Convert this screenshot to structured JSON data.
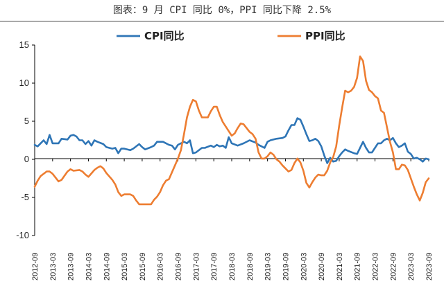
{
  "figure_title": "图表：9 月 CPI 同比 0%，PPI 同比下降 2.5%",
  "chart_data": {
    "type": "line",
    "title": "图表：9 月 CPI 同比 0%，PPI 同比下降 2.5%",
    "xlabel": "",
    "ylabel": "",
    "ylim": [
      -10,
      15
    ],
    "yticks": [
      -10,
      -5,
      0,
      5,
      10,
      15
    ],
    "x_start": "2012-09",
    "x_end": "2023-09",
    "xtick_labels": [
      "2012-09",
      "2013-03",
      "2013-09",
      "2014-03",
      "2014-09",
      "2015-03",
      "2015-09",
      "2016-03",
      "2016-09",
      "2017-03",
      "2017-09",
      "2018-03",
      "2018-09",
      "2019-03",
      "2019-09",
      "2020-03",
      "2020-09",
      "2021-03",
      "2021-09",
      "2022-03",
      "2022-09",
      "2023-03",
      "2023-09"
    ],
    "grid": false,
    "legend_position": "top",
    "series": [
      {
        "name": "CPI同比",
        "color": "#2E75B6",
        "points": [
          [
            "2012-09",
            1.9
          ],
          [
            "2012-10",
            1.7
          ],
          [
            "2012-12",
            2.5
          ],
          [
            "2013-01",
            2.0
          ],
          [
            "2013-02",
            3.2
          ],
          [
            "2013-03",
            2.1
          ],
          [
            "2013-05",
            2.1
          ],
          [
            "2013-06",
            2.7
          ],
          [
            "2013-08",
            2.6
          ],
          [
            "2013-09",
            3.1
          ],
          [
            "2013-10",
            3.2
          ],
          [
            "2013-11",
            3.0
          ],
          [
            "2013-12",
            2.5
          ],
          [
            "2014-01",
            2.5
          ],
          [
            "2014-02",
            2.0
          ],
          [
            "2014-03",
            2.4
          ],
          [
            "2014-04",
            1.8
          ],
          [
            "2014-05",
            2.5
          ],
          [
            "2014-06",
            2.3
          ],
          [
            "2014-08",
            2.0
          ],
          [
            "2014-09",
            1.6
          ],
          [
            "2014-11",
            1.4
          ],
          [
            "2014-12",
            1.5
          ],
          [
            "2015-01",
            0.8
          ],
          [
            "2015-02",
            1.4
          ],
          [
            "2015-03",
            1.4
          ],
          [
            "2015-05",
            1.2
          ],
          [
            "2015-06",
            1.4
          ],
          [
            "2015-08",
            2.0
          ],
          [
            "2015-09",
            1.6
          ],
          [
            "2015-10",
            1.3
          ],
          [
            "2015-12",
            1.6
          ],
          [
            "2016-01",
            1.8
          ],
          [
            "2016-02",
            2.3
          ],
          [
            "2016-04",
            2.3
          ],
          [
            "2016-06",
            1.9
          ],
          [
            "2016-07",
            1.8
          ],
          [
            "2016-08",
            1.3
          ],
          [
            "2016-09",
            1.9
          ],
          [
            "2016-11",
            2.3
          ],
          [
            "2016-12",
            2.1
          ],
          [
            "2017-01",
            2.5
          ],
          [
            "2017-02",
            0.8
          ],
          [
            "2017-03",
            0.9
          ],
          [
            "2017-05",
            1.5
          ],
          [
            "2017-06",
            1.5
          ],
          [
            "2017-08",
            1.8
          ],
          [
            "2017-09",
            1.6
          ],
          [
            "2017-10",
            1.9
          ],
          [
            "2017-11",
            1.7
          ],
          [
            "2017-12",
            1.8
          ],
          [
            "2018-01",
            1.5
          ],
          [
            "2018-02",
            2.9
          ],
          [
            "2018-03",
            2.1
          ],
          [
            "2018-05",
            1.8
          ],
          [
            "2018-07",
            2.1
          ],
          [
            "2018-09",
            2.5
          ],
          [
            "2018-11",
            2.2
          ],
          [
            "2018-12",
            1.9
          ],
          [
            "2019-01",
            1.7
          ],
          [
            "2019-02",
            1.5
          ],
          [
            "2019-03",
            2.3
          ],
          [
            "2019-04",
            2.5
          ],
          [
            "2019-06",
            2.7
          ],
          [
            "2019-08",
            2.8
          ],
          [
            "2019-09",
            3.0
          ],
          [
            "2019-10",
            3.8
          ],
          [
            "2019-11",
            4.5
          ],
          [
            "2019-12",
            4.5
          ],
          [
            "2020-01",
            5.4
          ],
          [
            "2020-02",
            5.2
          ],
          [
            "2020-03",
            4.3
          ],
          [
            "2020-04",
            3.3
          ],
          [
            "2020-05",
            2.4
          ],
          [
            "2020-06",
            2.5
          ],
          [
            "2020-07",
            2.7
          ],
          [
            "2020-08",
            2.4
          ],
          [
            "2020-09",
            1.7
          ],
          [
            "2020-10",
            0.5
          ],
          [
            "2020-11",
            -0.5
          ],
          [
            "2020-12",
            0.2
          ],
          [
            "2021-01",
            -0.3
          ],
          [
            "2021-02",
            -0.2
          ],
          [
            "2021-03",
            0.4
          ],
          [
            "2021-04",
            0.9
          ],
          [
            "2021-05",
            1.3
          ],
          [
            "2021-06",
            1.1
          ],
          [
            "2021-08",
            0.8
          ],
          [
            "2021-09",
            0.7
          ],
          [
            "2021-10",
            1.5
          ],
          [
            "2021-11",
            2.3
          ],
          [
            "2021-12",
            1.5
          ],
          [
            "2022-01",
            0.9
          ],
          [
            "2022-02",
            0.9
          ],
          [
            "2022-03",
            1.5
          ],
          [
            "2022-04",
            2.1
          ],
          [
            "2022-05",
            2.1
          ],
          [
            "2022-06",
            2.5
          ],
          [
            "2022-07",
            2.7
          ],
          [
            "2022-08",
            2.5
          ],
          [
            "2022-09",
            2.8
          ],
          [
            "2022-10",
            2.1
          ],
          [
            "2022-11",
            1.6
          ],
          [
            "2022-12",
            1.8
          ],
          [
            "2023-01",
            2.1
          ],
          [
            "2023-02",
            1.0
          ],
          [
            "2023-03",
            0.7
          ],
          [
            "2023-04",
            0.1
          ],
          [
            "2023-05",
            0.2
          ],
          [
            "2023-06",
            0.0
          ],
          [
            "2023-07",
            -0.3
          ],
          [
            "2023-08",
            0.1
          ],
          [
            "2023-09",
            0.0
          ]
        ]
      },
      {
        "name": "PPI同比",
        "color": "#ED7D31",
        "points": [
          [
            "2012-09",
            -3.6
          ],
          [
            "2012-10",
            -2.8
          ],
          [
            "2012-11",
            -2.2
          ],
          [
            "2013-01",
            -1.6
          ],
          [
            "2013-02",
            -1.6
          ],
          [
            "2013-03",
            -1.9
          ],
          [
            "2013-05",
            -2.9
          ],
          [
            "2013-06",
            -2.7
          ],
          [
            "2013-08",
            -1.6
          ],
          [
            "2013-09",
            -1.3
          ],
          [
            "2013-10",
            -1.5
          ],
          [
            "2013-12",
            -1.4
          ],
          [
            "2014-01",
            -1.6
          ],
          [
            "2014-02",
            -2.0
          ],
          [
            "2014-03",
            -2.3
          ],
          [
            "2014-05",
            -1.4
          ],
          [
            "2014-06",
            -1.1
          ],
          [
            "2014-07",
            -0.9
          ],
          [
            "2014-08",
            -1.2
          ],
          [
            "2014-09",
            -1.8
          ],
          [
            "2014-11",
            -2.7
          ],
          [
            "2014-12",
            -3.3
          ],
          [
            "2015-01",
            -4.3
          ],
          [
            "2015-02",
            -4.8
          ],
          [
            "2015-03",
            -4.6
          ],
          [
            "2015-05",
            -4.6
          ],
          [
            "2015-06",
            -4.8
          ],
          [
            "2015-07",
            -5.4
          ],
          [
            "2015-08",
            -5.9
          ],
          [
            "2015-09",
            -5.9
          ],
          [
            "2015-10",
            -5.9
          ],
          [
            "2015-12",
            -5.9
          ],
          [
            "2016-01",
            -5.3
          ],
          [
            "2016-02",
            -4.9
          ],
          [
            "2016-03",
            -4.3
          ],
          [
            "2016-04",
            -3.4
          ],
          [
            "2016-05",
            -2.8
          ],
          [
            "2016-06",
            -2.6
          ],
          [
            "2016-07",
            -1.7
          ],
          [
            "2016-08",
            -0.8
          ],
          [
            "2016-09",
            0.1
          ],
          [
            "2016-10",
            1.2
          ],
          [
            "2016-11",
            3.3
          ],
          [
            "2016-12",
            5.5
          ],
          [
            "2017-01",
            6.9
          ],
          [
            "2017-02",
            7.8
          ],
          [
            "2017-03",
            7.6
          ],
          [
            "2017-04",
            6.4
          ],
          [
            "2017-05",
            5.5
          ],
          [
            "2017-06",
            5.5
          ],
          [
            "2017-07",
            5.5
          ],
          [
            "2017-08",
            6.3
          ],
          [
            "2017-09",
            6.9
          ],
          [
            "2017-10",
            6.9
          ],
          [
            "2017-11",
            5.8
          ],
          [
            "2017-12",
            4.9
          ],
          [
            "2018-01",
            4.3
          ],
          [
            "2018-02",
            3.7
          ],
          [
            "2018-03",
            3.1
          ],
          [
            "2018-04",
            3.4
          ],
          [
            "2018-05",
            4.1
          ],
          [
            "2018-06",
            4.7
          ],
          [
            "2018-07",
            4.6
          ],
          [
            "2018-08",
            4.1
          ],
          [
            "2018-09",
            3.6
          ],
          [
            "2018-10",
            3.3
          ],
          [
            "2018-11",
            2.7
          ],
          [
            "2018-12",
            0.9
          ],
          [
            "2019-01",
            0.1
          ],
          [
            "2019-02",
            0.1
          ],
          [
            "2019-03",
            0.4
          ],
          [
            "2019-04",
            0.9
          ],
          [
            "2019-05",
            0.6
          ],
          [
            "2019-06",
            0.0
          ],
          [
            "2019-07",
            -0.3
          ],
          [
            "2019-08",
            -0.8
          ],
          [
            "2019-09",
            -1.2
          ],
          [
            "2019-10",
            -1.6
          ],
          [
            "2019-11",
            -1.4
          ],
          [
            "2019-12",
            -0.5
          ],
          [
            "2020-01",
            0.1
          ],
          [
            "2020-02",
            -0.4
          ],
          [
            "2020-03",
            -1.5
          ],
          [
            "2020-04",
            -3.1
          ],
          [
            "2020-05",
            -3.7
          ],
          [
            "2020-06",
            -3.0
          ],
          [
            "2020-07",
            -2.4
          ],
          [
            "2020-08",
            -2.0
          ],
          [
            "2020-09",
            -2.1
          ],
          [
            "2020-10",
            -2.1
          ],
          [
            "2020-11",
            -1.5
          ],
          [
            "2020-12",
            -0.4
          ],
          [
            "2021-01",
            0.3
          ],
          [
            "2021-02",
            1.7
          ],
          [
            "2021-03",
            4.4
          ],
          [
            "2021-04",
            6.8
          ],
          [
            "2021-05",
            9.0
          ],
          [
            "2021-06",
            8.8
          ],
          [
            "2021-07",
            9.0
          ],
          [
            "2021-08",
            9.5
          ],
          [
            "2021-09",
            10.7
          ],
          [
            "2021-10",
            13.5
          ],
          [
            "2021-11",
            12.9
          ],
          [
            "2021-12",
            10.3
          ],
          [
            "2022-01",
            9.1
          ],
          [
            "2022-02",
            8.8
          ],
          [
            "2022-03",
            8.3
          ],
          [
            "2022-04",
            8.0
          ],
          [
            "2022-05",
            6.4
          ],
          [
            "2022-06",
            6.1
          ],
          [
            "2022-07",
            4.2
          ],
          [
            "2022-08",
            2.3
          ],
          [
            "2022-09",
            0.9
          ],
          [
            "2022-10",
            -1.3
          ],
          [
            "2022-11",
            -1.3
          ],
          [
            "2022-12",
            -0.7
          ],
          [
            "2023-01",
            -0.8
          ],
          [
            "2023-02",
            -1.4
          ],
          [
            "2023-03",
            -2.5
          ],
          [
            "2023-04",
            -3.6
          ],
          [
            "2023-05",
            -4.6
          ],
          [
            "2023-06",
            -5.4
          ],
          [
            "2023-07",
            -4.4
          ],
          [
            "2023-08",
            -3.0
          ],
          [
            "2023-09",
            -2.5
          ]
        ]
      }
    ]
  }
}
